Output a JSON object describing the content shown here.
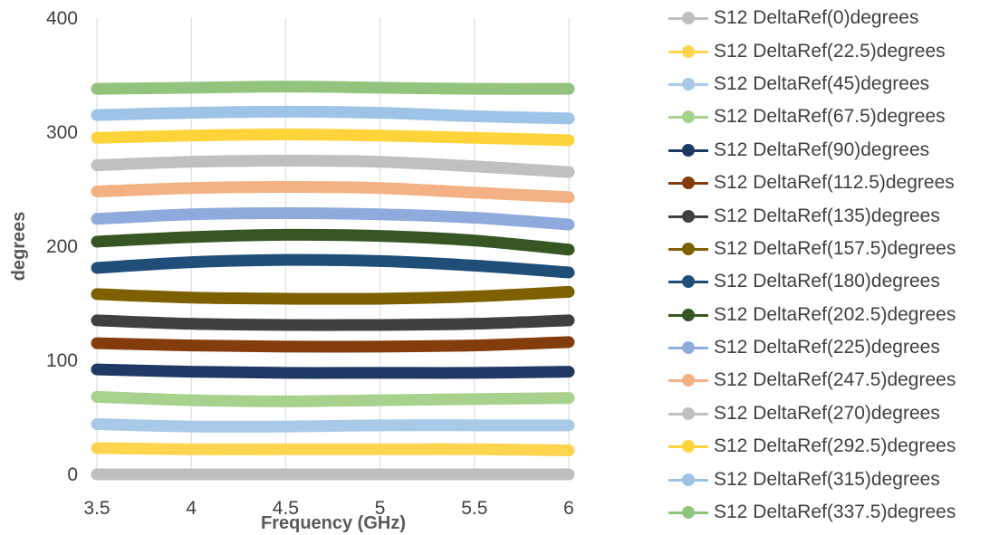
{
  "chart_data": {
    "type": "line",
    "xlabel": "Frequency (GHz)",
    "ylabel": "degrees",
    "xlim": [
      3.5,
      6
    ],
    "ylim": [
      0,
      400
    ],
    "xticks": [
      "3.5",
      "4",
      "4.5",
      "5",
      "5.5",
      "6"
    ],
    "yticks": [
      "0",
      "100",
      "200",
      "300",
      "400"
    ],
    "grid": "vertical",
    "legend_position": "right",
    "x": [
      3.5,
      4.0,
      4.5,
      5.0,
      5.5,
      6.0
    ],
    "series": [
      {
        "name": "S12 DeltaRef(0)degrees",
        "color": "#bfbfbf",
        "values": [
          0,
          0,
          0,
          0,
          0,
          0
        ]
      },
      {
        "name": "S12 DeltaRef(22.5)degrees",
        "color": "#ffd54f",
        "values": [
          23,
          22,
          22,
          22,
          22,
          21
        ]
      },
      {
        "name": "S12 DeltaRef(45)degrees",
        "color": "#a9c9e8",
        "values": [
          44,
          42,
          42,
          43,
          43,
          43
        ]
      },
      {
        "name": "S12 DeltaRef(67.5)degrees",
        "color": "#a9d18e",
        "values": [
          68,
          65,
          64,
          65,
          66,
          67
        ]
      },
      {
        "name": "S12 DeltaRef(90)degrees",
        "color": "#1f3864",
        "values": [
          92,
          90,
          89,
          89,
          89,
          90
        ]
      },
      {
        "name": "S12 DeltaRef(112.5)degrees",
        "color": "#843c0c",
        "values": [
          115,
          113,
          112,
          112,
          113,
          116
        ]
      },
      {
        "name": "S12 DeltaRef(135)degrees",
        "color": "#404040",
        "values": [
          135,
          132,
          131,
          131,
          132,
          135
        ]
      },
      {
        "name": "S12 DeltaRef(157.5)degrees",
        "color": "#7f6000",
        "values": [
          158,
          155,
          154,
          154,
          156,
          160
        ]
      },
      {
        "name": "S12 DeltaRef(180)degrees",
        "color": "#1f4e79",
        "values": [
          181,
          186,
          188,
          187,
          183,
          177
        ]
      },
      {
        "name": "S12 DeltaRef(202.5)degrees",
        "color": "#375623",
        "values": [
          204,
          208,
          210,
          209,
          205,
          197
        ]
      },
      {
        "name": "S12 DeltaRef(225)degrees",
        "color": "#8faadc",
        "values": [
          224,
          228,
          229,
          228,
          225,
          219
        ]
      },
      {
        "name": "S12 DeltaRef(247.5)degrees",
        "color": "#f4b183",
        "values": [
          248,
          251,
          252,
          251,
          247,
          243
        ]
      },
      {
        "name": "S12 DeltaRef(270)degrees",
        "color": "#c0c0c0",
        "values": [
          271,
          274,
          275,
          274,
          270,
          265
        ]
      },
      {
        "name": "S12 DeltaRef(292.5)degrees",
        "color": "#ffd43b",
        "values": [
          295,
          297,
          298,
          297,
          295,
          293
        ]
      },
      {
        "name": "S12 DeltaRef(315)degrees",
        "color": "#9dc3e6",
        "values": [
          315,
          317,
          318,
          317,
          314,
          312
        ]
      },
      {
        "name": "S12 DeltaRef(337.5)degrees",
        "color": "#93c47d",
        "values": [
          338,
          339,
          340,
          339,
          338,
          338
        ]
      }
    ]
  }
}
